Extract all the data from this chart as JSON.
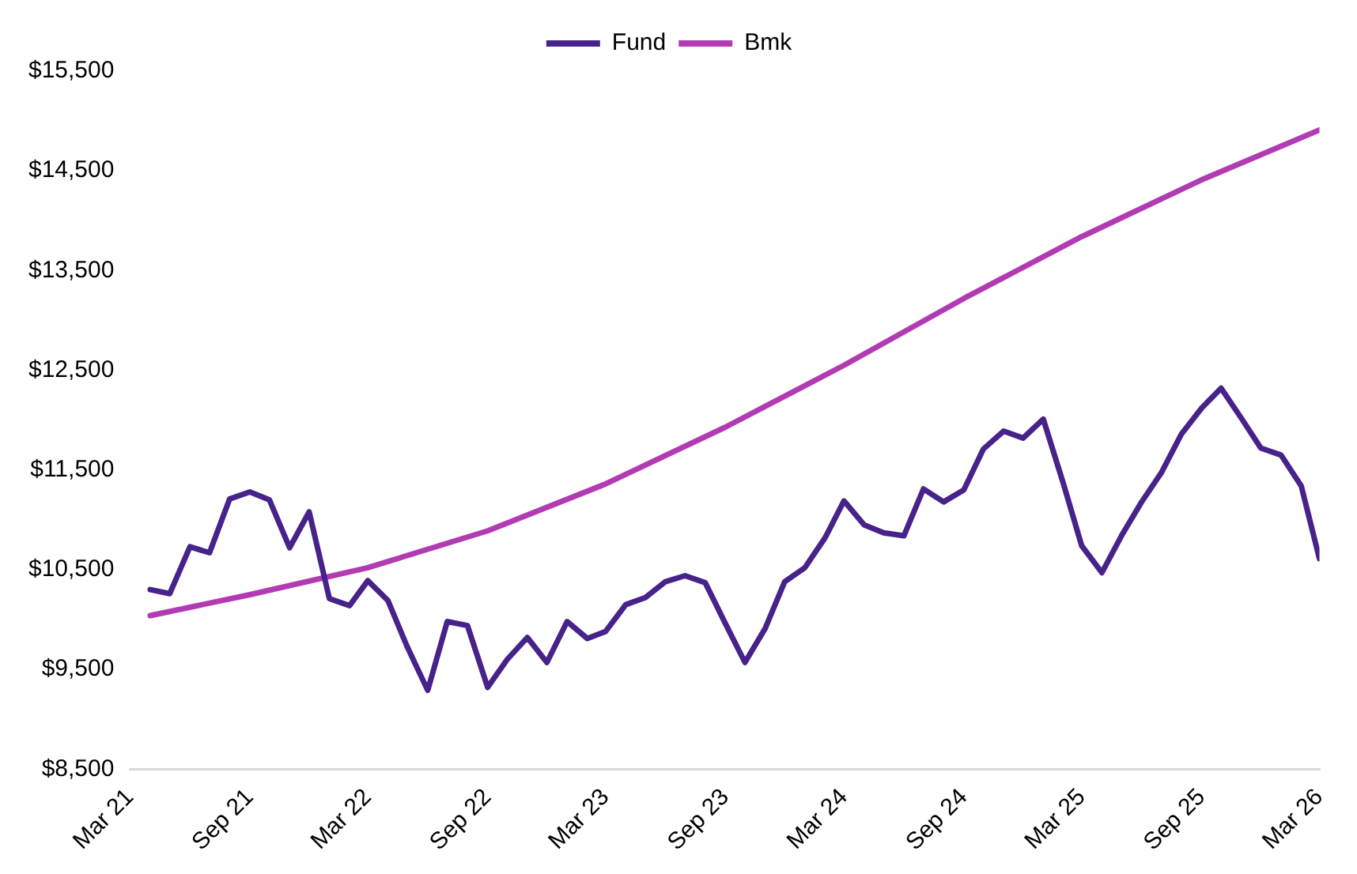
{
  "chart_data": {
    "type": "line",
    "legend": "top",
    "grid": false,
    "marker": "none",
    "line_style": "solid",
    "x": [
      "2021-04",
      "2021-05",
      "2021-06",
      "2021-07",
      "2021-08",
      "2021-09",
      "2021-10",
      "2021-11",
      "2021-12",
      "2022-01",
      "2022-02",
      "2022-03",
      "2022-04",
      "2022-05",
      "2022-06",
      "2022-07",
      "2022-08",
      "2022-09",
      "2022-10",
      "2022-11",
      "2022-12",
      "2023-01",
      "2023-02",
      "2023-03",
      "2023-04",
      "2023-05",
      "2023-06",
      "2023-07",
      "2023-08",
      "2023-09",
      "2023-10",
      "2023-11",
      "2023-12",
      "2024-01",
      "2024-02",
      "2024-03",
      "2024-04",
      "2024-05",
      "2024-06",
      "2024-07",
      "2024-08",
      "2024-09",
      "2024-10",
      "2024-11",
      "2024-12",
      "2025-01",
      "2025-02",
      "2025-03",
      "2025-04",
      "2025-05",
      "2025-06",
      "2025-07",
      "2025-08",
      "2025-09",
      "2025-10",
      "2025-11",
      "2025-12",
      "2026-01",
      "2026-02",
      "2026-03"
    ],
    "xlim": [
      "2021-03",
      "2026-03"
    ],
    "xticks": [
      {
        "value": "2021-03",
        "label": "Mar 21"
      },
      {
        "value": "2021-09",
        "label": "Sep 21"
      },
      {
        "value": "2022-03",
        "label": "Mar 22"
      },
      {
        "value": "2022-09",
        "label": "Sep 22"
      },
      {
        "value": "2023-03",
        "label": "Mar 23"
      },
      {
        "value": "2023-09",
        "label": "Sep 23"
      },
      {
        "value": "2024-03",
        "label": "Mar 24"
      },
      {
        "value": "2024-09",
        "label": "Sep 24"
      },
      {
        "value": "2025-03",
        "label": "Mar 25"
      },
      {
        "value": "2025-09",
        "label": "Sep 25"
      },
      {
        "value": "2026-03",
        "label": "Mar 26"
      }
    ],
    "ylim": [
      8500,
      15500
    ],
    "yticks": [
      {
        "value": 8500,
        "label": "$8,500"
      },
      {
        "value": 9500,
        "label": "$9,500"
      },
      {
        "value": 10500,
        "label": "$10,500"
      },
      {
        "value": 11500,
        "label": "$11,500"
      },
      {
        "value": 12500,
        "label": "$12,500"
      },
      {
        "value": 13500,
        "label": "$13,500"
      },
      {
        "value": 14500,
        "label": "$14,500"
      },
      {
        "value": 15500,
        "label": "$15,500"
      }
    ],
    "series": [
      {
        "name": "Fund",
        "color": "#46228a",
        "values": [
          10300,
          10260,
          10730,
          10670,
          11210,
          11280,
          11200,
          10720,
          11080,
          10210,
          10140,
          10390,
          10190,
          9720,
          9290,
          9980,
          9940,
          9320,
          9600,
          9820,
          9570,
          9980,
          9810,
          9880,
          10150,
          10220,
          10380,
          10440,
          10370,
          9960,
          9570,
          9910,
          10380,
          10520,
          10820,
          11190,
          10950,
          10870,
          10840,
          11310,
          11180,
          11300,
          11710,
          11890,
          11820,
          12010,
          11360,
          10740,
          10470,
          10840,
          11180,
          11470,
          11860,
          12120,
          12320,
          12020,
          11720,
          11650,
          11340,
          10610
        ]
      },
      {
        "name": "Bmk",
        "color": "#b23bb3",
        "x": [
          "2021-04",
          "2021-09",
          "2022-03",
          "2022-09",
          "2023-03",
          "2023-09",
          "2024-03",
          "2024-09",
          "2025-03",
          "2025-09",
          "2026-03"
        ],
        "values": [
          10040,
          10250,
          10520,
          10890,
          11360,
          11930,
          12550,
          13220,
          13840,
          14410,
          14910
        ]
      }
    ]
  }
}
